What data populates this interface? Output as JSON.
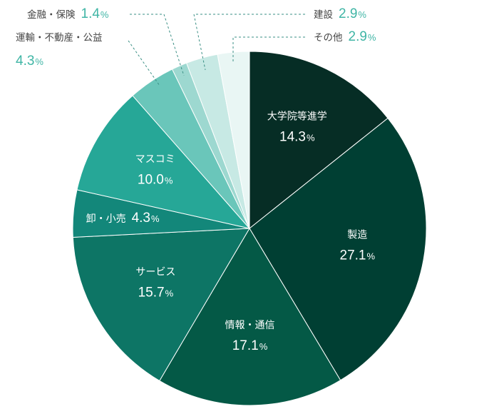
{
  "chart_data": {
    "type": "pie",
    "unit": "%",
    "slices": [
      {
        "label": "大学院等進学",
        "value": 14.3,
        "color": "#062d25",
        "placement": "inside"
      },
      {
        "label": "製造",
        "value": 27.1,
        "color": "#003f33",
        "placement": "inside"
      },
      {
        "label": "情報・通信",
        "value": 17.1,
        "color": "#045946",
        "placement": "inside"
      },
      {
        "label": "サービス",
        "value": 15.7,
        "color": "#0d7565",
        "placement": "inside"
      },
      {
        "label": "卸・小売",
        "value": 4.3,
        "color": "#13877a",
        "placement": "inside-inline"
      },
      {
        "label": "マスコミ",
        "value": 10.0,
        "color": "#26a797",
        "placement": "inside"
      },
      {
        "label": "運輸・不動産・公益",
        "value": 4.3,
        "color": "#6ac6ba",
        "placement": "outside-left"
      },
      {
        "label": "金融・保険",
        "value": 1.4,
        "color": "#9dd8d0",
        "placement": "outside-left"
      },
      {
        "label": "建設",
        "value": 2.9,
        "color": "#c7e9e4",
        "placement": "outside-right"
      },
      {
        "label": "その他",
        "value": 2.9,
        "color": "#e9f6f4",
        "placement": "outside-right"
      }
    ]
  }
}
